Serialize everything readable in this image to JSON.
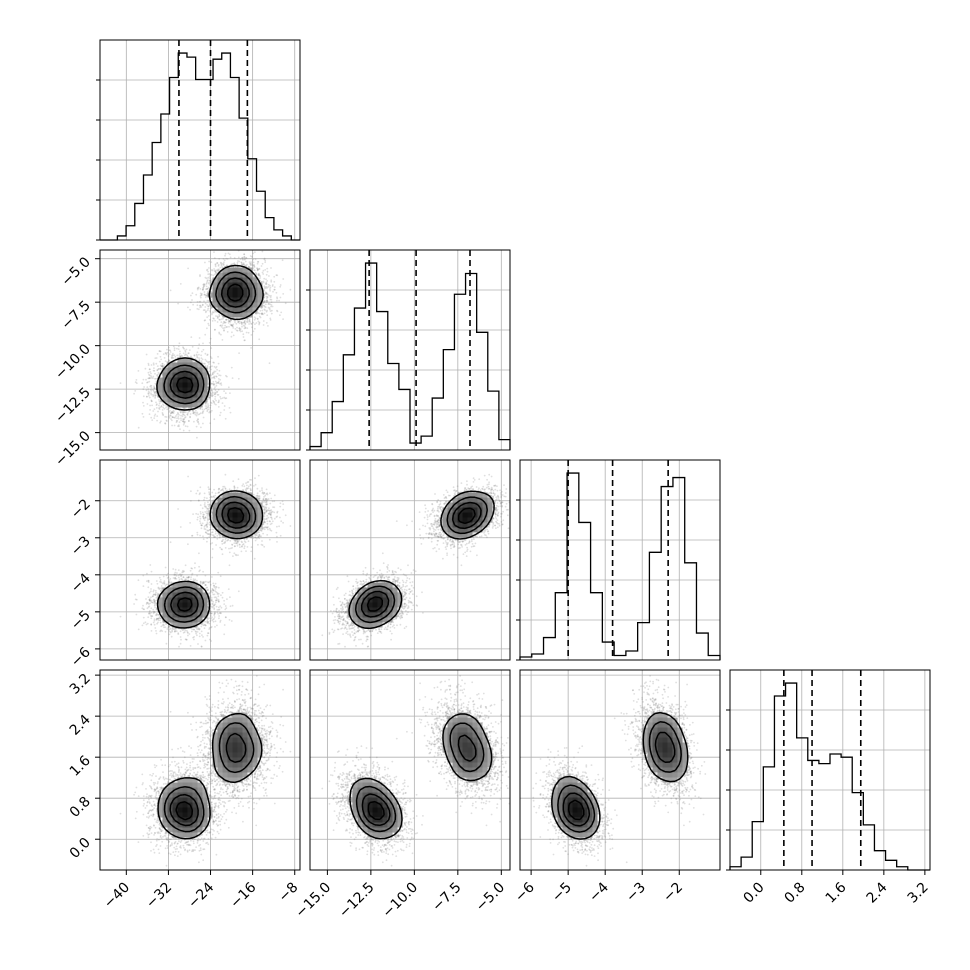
{
  "chart_data": {
    "type": "corner",
    "grid": true,
    "point_color": "#808080",
    "line_color": "#000000",
    "parameters": [
      {
        "range": [
          -45,
          -7
        ],
        "ticks": [
          -40,
          -32,
          -24,
          -16,
          -8
        ],
        "tick_labels": [
          "−40",
          "−32",
          "−24",
          "−16",
          "−8"
        ],
        "hist_counts": [
          0,
          0,
          2,
          7,
          18,
          32,
          48,
          62,
          80,
          92,
          90,
          79,
          79,
          89,
          92,
          80,
          60,
          40,
          24,
          11,
          5,
          2,
          0
        ],
        "quantiles": [
          -30,
          -24,
          -17
        ],
        "modes": [
          {
            "mean": -29,
            "sd": 3,
            "weight": 0.5
          },
          {
            "mean": -19,
            "sd": 3,
            "weight": 0.5
          }
        ]
      },
      {
        "range": [
          -16,
          -4.5
        ],
        "ticks": [
          -15,
          -12.5,
          -10,
          -7.5,
          -5
        ],
        "tick_labels": [
          "−15.0",
          "−12.5",
          "−10.0",
          "−7.5",
          "−5.0"
        ],
        "hist_counts": [
          2,
          10,
          28,
          55,
          82,
          108,
          80,
          50,
          35,
          4,
          8,
          30,
          58,
          90,
          102,
          68,
          34,
          6
        ],
        "quantiles": [
          -12.6,
          -9.9,
          -6.8
        ],
        "modes": [
          {
            "mean": -12.3,
            "sd": 0.9,
            "weight": 0.5
          },
          {
            "mean": -7.0,
            "sd": 0.9,
            "weight": 0.5
          }
        ]
      },
      {
        "range": [
          -6.3,
          -0.9
        ],
        "ticks": [
          -6,
          -5,
          -4,
          -3,
          -2
        ],
        "tick_labels": [
          "−6",
          "−5",
          "−4",
          "−3",
          "−2"
        ],
        "hist_counts": [
          2,
          4,
          15,
          45,
          125,
          92,
          45,
          12,
          3,
          6,
          25,
          72,
          116,
          122,
          65,
          18,
          3
        ],
        "quantiles": [
          -5.0,
          -3.8,
          -2.3
        ],
        "modes": [
          {
            "mean": -4.8,
            "sd": 0.35,
            "weight": 0.5
          },
          {
            "mean": -2.4,
            "sd": 0.35,
            "weight": 0.5
          }
        ]
      },
      {
        "range": [
          -0.6,
          3.3
        ],
        "ticks": [
          0.0,
          0.8,
          1.6,
          2.4,
          3.2
        ],
        "tick_labels": [
          "0.0",
          "0.8",
          "1.6",
          "2.4",
          "3.2"
        ],
        "hist_counts": [
          2,
          8,
          30,
          64,
          108,
          116,
          82,
          68,
          66,
          72,
          70,
          48,
          28,
          12,
          6,
          2,
          0,
          0
        ],
        "quantiles": [
          0.45,
          1.0,
          1.95
        ],
        "modes": [
          {
            "mean": 0.6,
            "sd": 0.35,
            "weight": 0.55
          },
          {
            "mean": 1.8,
            "sd": 0.45,
            "weight": 0.45
          }
        ]
      }
    ]
  }
}
